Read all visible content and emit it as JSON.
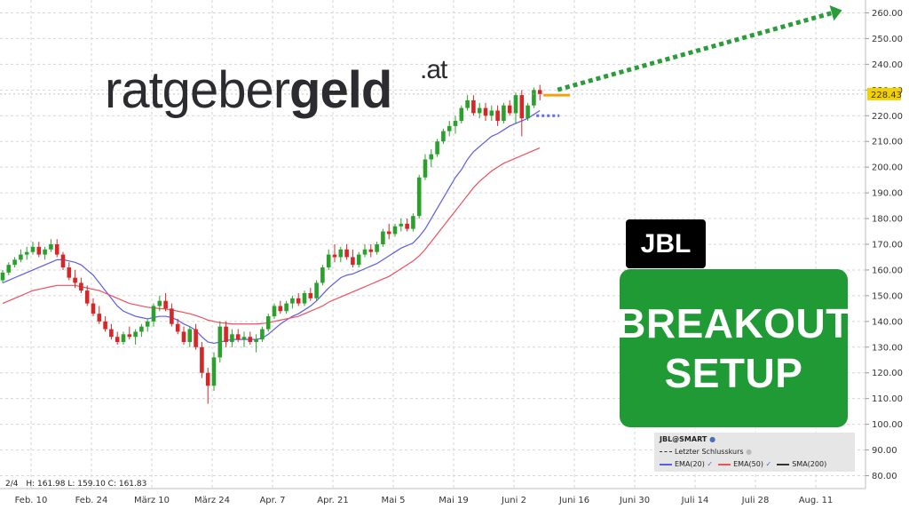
{
  "chart_data": {
    "type": "candlestick",
    "symbol": "JBL",
    "ylim": [
      75,
      265
    ],
    "y_ticks": [
      80,
      90,
      100,
      110,
      120,
      130,
      140,
      150,
      160,
      170,
      180,
      190,
      200,
      210,
      220,
      230,
      240,
      250,
      260
    ],
    "y_tick_labels": [
      "80.00",
      "90.00",
      "100.00",
      "110.00",
      "120.00",
      "130.00",
      "140.00",
      "150.00",
      "160.00",
      "170.00",
      "180.00",
      "190.00",
      "200.00",
      "210.00",
      "220.00",
      "230.00",
      "240.00",
      "250.00",
      "260.00"
    ],
    "x_tick_labels": [
      "Feb. 10",
      "Feb. 24",
      "März 10",
      "März 24",
      "Apr. 7",
      "Apr. 21",
      "Mai 5",
      "Mai 19",
      "Juni 2",
      "Juni 16",
      "Juni 30",
      "Juli 14",
      "Juli 28",
      "Aug. 11"
    ],
    "x_tick_index": [
      0,
      10,
      20,
      30,
      40,
      50,
      60,
      70,
      80,
      90,
      100,
      110,
      120,
      130
    ],
    "last_price_label": "228.43",
    "last_price": 228.43,
    "candles": [
      {
        "o": 156,
        "h": 160,
        "l": 155,
        "c": 159
      },
      {
        "o": 159,
        "h": 163,
        "l": 158,
        "c": 162
      },
      {
        "o": 162,
        "h": 165,
        "l": 161,
        "c": 164
      },
      {
        "o": 164,
        "h": 168,
        "l": 163,
        "c": 166
      },
      {
        "o": 166,
        "h": 169,
        "l": 164,
        "c": 167
      },
      {
        "o": 167,
        "h": 171,
        "l": 166,
        "c": 169
      },
      {
        "o": 169,
        "h": 171,
        "l": 165,
        "c": 166
      },
      {
        "o": 166,
        "h": 169,
        "l": 164,
        "c": 168
      },
      {
        "o": 168,
        "h": 172,
        "l": 167,
        "c": 170
      },
      {
        "o": 170,
        "h": 172,
        "l": 165,
        "c": 166
      },
      {
        "o": 166,
        "h": 167,
        "l": 160,
        "c": 161
      },
      {
        "o": 161,
        "h": 163,
        "l": 156,
        "c": 157
      },
      {
        "o": 157,
        "h": 160,
        "l": 153,
        "c": 155
      },
      {
        "o": 155,
        "h": 157,
        "l": 151,
        "c": 152
      },
      {
        "o": 152,
        "h": 154,
        "l": 146,
        "c": 147
      },
      {
        "o": 147,
        "h": 149,
        "l": 142,
        "c": 143
      },
      {
        "o": 143,
        "h": 146,
        "l": 139,
        "c": 140
      },
      {
        "o": 140,
        "h": 142,
        "l": 136,
        "c": 137
      },
      {
        "o": 137,
        "h": 139,
        "l": 133,
        "c": 134
      },
      {
        "o": 134,
        "h": 136,
        "l": 131,
        "c": 132
      },
      {
        "o": 132,
        "h": 136,
        "l": 131,
        "c": 135
      },
      {
        "o": 135,
        "h": 138,
        "l": 133,
        "c": 134
      },
      {
        "o": 134,
        "h": 137,
        "l": 131,
        "c": 136
      },
      {
        "o": 136,
        "h": 139,
        "l": 134,
        "c": 138
      },
      {
        "o": 138,
        "h": 141,
        "l": 136,
        "c": 140
      },
      {
        "o": 140,
        "h": 147,
        "l": 138,
        "c": 146
      },
      {
        "o": 146,
        "h": 150,
        "l": 144,
        "c": 148
      },
      {
        "o": 148,
        "h": 151,
        "l": 144,
        "c": 145
      },
      {
        "o": 145,
        "h": 147,
        "l": 138,
        "c": 139
      },
      {
        "o": 139,
        "h": 141,
        "l": 135,
        "c": 136
      },
      {
        "o": 136,
        "h": 138,
        "l": 131,
        "c": 132
      },
      {
        "o": 132,
        "h": 138,
        "l": 130,
        "c": 137
      },
      {
        "o": 137,
        "h": 139,
        "l": 129,
        "c": 130
      },
      {
        "o": 130,
        "h": 132,
        "l": 118,
        "c": 120
      },
      {
        "o": 120,
        "h": 122,
        "l": 108,
        "c": 115
      },
      {
        "o": 115,
        "h": 128,
        "l": 113,
        "c": 126
      },
      {
        "o": 126,
        "h": 140,
        "l": 124,
        "c": 138
      },
      {
        "o": 138,
        "h": 140,
        "l": 130,
        "c": 132
      },
      {
        "o": 132,
        "h": 137,
        "l": 130,
        "c": 135
      },
      {
        "o": 135,
        "h": 137,
        "l": 132,
        "c": 133
      },
      {
        "o": 133,
        "h": 136,
        "l": 130,
        "c": 134
      },
      {
        "o": 134,
        "h": 136,
        "l": 131,
        "c": 132
      },
      {
        "o": 132,
        "h": 135,
        "l": 128,
        "c": 133
      },
      {
        "o": 133,
        "h": 138,
        "l": 132,
        "c": 137
      },
      {
        "o": 137,
        "h": 143,
        "l": 136,
        "c": 142
      },
      {
        "o": 142,
        "h": 147,
        "l": 141,
        "c": 146
      },
      {
        "o": 146,
        "h": 148,
        "l": 143,
        "c": 144
      },
      {
        "o": 144,
        "h": 148,
        "l": 143,
        "c": 147
      },
      {
        "o": 147,
        "h": 150,
        "l": 145,
        "c": 149
      },
      {
        "o": 149,
        "h": 151,
        "l": 146,
        "c": 147
      },
      {
        "o": 147,
        "h": 152,
        "l": 146,
        "c": 151
      },
      {
        "o": 151,
        "h": 153,
        "l": 148,
        "c": 149
      },
      {
        "o": 149,
        "h": 156,
        "l": 148,
        "c": 155
      },
      {
        "o": 155,
        "h": 162,
        "l": 154,
        "c": 161
      },
      {
        "o": 161,
        "h": 168,
        "l": 160,
        "c": 166
      },
      {
        "o": 166,
        "h": 170,
        "l": 163,
        "c": 165
      },
      {
        "o": 165,
        "h": 169,
        "l": 163,
        "c": 168
      },
      {
        "o": 168,
        "h": 170,
        "l": 164,
        "c": 165
      },
      {
        "o": 165,
        "h": 168,
        "l": 161,
        "c": 162
      },
      {
        "o": 162,
        "h": 167,
        "l": 161,
        "c": 166
      },
      {
        "o": 166,
        "h": 170,
        "l": 165,
        "c": 168
      },
      {
        "o": 168,
        "h": 170,
        "l": 165,
        "c": 167
      },
      {
        "o": 167,
        "h": 171,
        "l": 166,
        "c": 170
      },
      {
        "o": 170,
        "h": 176,
        "l": 169,
        "c": 175
      },
      {
        "o": 175,
        "h": 178,
        "l": 172,
        "c": 174
      },
      {
        "o": 174,
        "h": 178,
        "l": 173,
        "c": 177
      },
      {
        "o": 177,
        "h": 180,
        "l": 175,
        "c": 178
      },
      {
        "o": 178,
        "h": 180,
        "l": 175,
        "c": 176
      },
      {
        "o": 176,
        "h": 182,
        "l": 175,
        "c": 181
      },
      {
        "o": 181,
        "h": 197,
        "l": 180,
        "c": 196
      },
      {
        "o": 196,
        "h": 205,
        "l": 195,
        "c": 203
      },
      {
        "o": 203,
        "h": 207,
        "l": 200,
        "c": 205
      },
      {
        "o": 205,
        "h": 211,
        "l": 204,
        "c": 210
      },
      {
        "o": 210,
        "h": 215,
        "l": 209,
        "c": 214
      },
      {
        "o": 214,
        "h": 218,
        "l": 212,
        "c": 216
      },
      {
        "o": 216,
        "h": 220,
        "l": 213,
        "c": 218
      },
      {
        "o": 218,
        "h": 224,
        "l": 217,
        "c": 223
      },
      {
        "o": 223,
        "h": 228,
        "l": 222,
        "c": 226
      },
      {
        "o": 226,
        "h": 228,
        "l": 220,
        "c": 221
      },
      {
        "o": 221,
        "h": 225,
        "l": 219,
        "c": 223
      },
      {
        "o": 223,
        "h": 225,
        "l": 218,
        "c": 220
      },
      {
        "o": 220,
        "h": 224,
        "l": 218,
        "c": 222
      },
      {
        "o": 222,
        "h": 224,
        "l": 216,
        "c": 218
      },
      {
        "o": 218,
        "h": 225,
        "l": 217,
        "c": 224
      },
      {
        "o": 224,
        "h": 226,
        "l": 220,
        "c": 221
      },
      {
        "o": 221,
        "h": 229,
        "l": 217,
        "c": 228
      },
      {
        "o": 228,
        "h": 230,
        "l": 212,
        "c": 219
      },
      {
        "o": 219,
        "h": 225,
        "l": 218,
        "c": 224
      },
      {
        "o": 224,
        "h": 231,
        "l": 223,
        "c": 230
      },
      {
        "o": 230,
        "h": 232,
        "l": 226,
        "c": 228.43
      }
    ],
    "series": [
      {
        "name": "EMA(20)",
        "color": "#5b5bf0",
        "values": [
          155,
          156,
          157,
          158,
          159,
          160,
          161,
          162,
          163,
          164,
          164,
          163.5,
          163,
          162,
          160,
          158,
          155,
          152,
          149,
          146,
          144,
          143,
          142,
          141.5,
          141,
          141.5,
          142,
          142,
          141.5,
          140.5,
          139,
          138,
          136.5,
          134,
          132,
          131.5,
          132,
          132.5,
          133,
          133,
          133,
          133,
          133,
          133.5,
          135,
          137,
          139,
          140.5,
          142,
          143,
          144.5,
          146,
          148,
          150.5,
          153,
          155,
          157,
          158,
          158.5,
          159.5,
          160.5,
          161.5,
          162.5,
          164,
          165.5,
          167,
          168.5,
          169.5,
          170.5,
          173,
          176,
          180,
          184,
          188,
          192,
          196,
          199,
          203,
          206,
          208,
          210,
          212,
          213,
          214.5,
          216,
          217,
          218,
          219,
          220.5,
          222
        ]
      },
      {
        "name": "EMA(50)",
        "color": "#f04f5c",
        "values": [
          147,
          148,
          149,
          150,
          151,
          152,
          152.5,
          153,
          153.5,
          154,
          154,
          154,
          154,
          153.5,
          153,
          152.5,
          152,
          151,
          150,
          149,
          148,
          147,
          146.5,
          146,
          145.5,
          145.3,
          145,
          144.8,
          144.5,
          144,
          143.5,
          143,
          142.3,
          141.5,
          140.5,
          140,
          139.5,
          139.3,
          139,
          139,
          139,
          139,
          139,
          139.2,
          139.5,
          140,
          140.5,
          141,
          141.5,
          142,
          143,
          144,
          145,
          146,
          147.5,
          148.5,
          149.5,
          150.5,
          151.5,
          152.5,
          153.5,
          154.5,
          155.5,
          156.5,
          157.5,
          159,
          160.5,
          162,
          163.5,
          165.5,
          168,
          171,
          174,
          177,
          180,
          183,
          186,
          189,
          192,
          194.5,
          196.5,
          198.5,
          200,
          201.5,
          202.5,
          203.5,
          204.5,
          205.5,
          206.5,
          207.5
        ]
      }
    ],
    "annotations": {
      "target_level": 228,
      "support_level": 220,
      "arrow_target": 262
    },
    "legend": {
      "title": "JBL@SMART",
      "last_close": "Letzter Schlusskurs",
      "ema20": "EMA(20)",
      "ema50": "EMA(50)",
      "sma200": "SMA(200)"
    },
    "ohlc_readout": {
      "id": "2/4",
      "high": "H: 161.98",
      "low": "L: 159.10",
      "close": "C: 161.83"
    }
  },
  "overlay": {
    "logo_regular": "ratgeber",
    "logo_bold": "geld",
    "logo_tld": ".at",
    "ticker": "JBL",
    "headline_1": "BREAKOUT",
    "headline_2": "SETUP"
  },
  "colors": {
    "up": "#2ca02c",
    "down": "#d62728",
    "price_tag": "#f5d000",
    "target": "#f5a300",
    "arrow": "#2a9c3a",
    "support": "#5b6ef0"
  }
}
